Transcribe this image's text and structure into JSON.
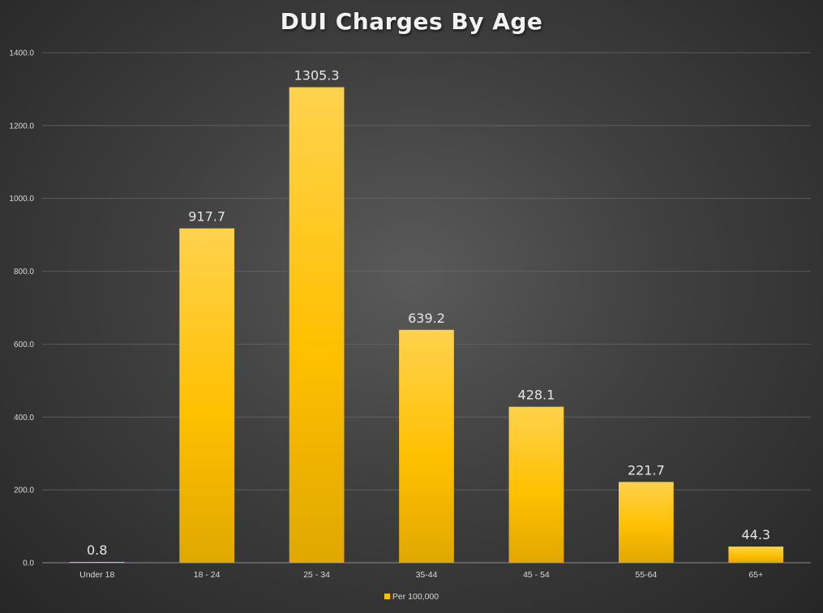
{
  "chart_data": {
    "type": "bar",
    "title": "DUI Charges By Age",
    "categories": [
      "Under 18",
      "18 - 24",
      "25 - 34",
      "35-44",
      "45 - 54",
      "55-64",
      "65+"
    ],
    "series": [
      {
        "name": "Per 100,000",
        "values": [
          0.8,
          917.7,
          1305.3,
          639.2,
          428.1,
          221.7,
          44.3
        ],
        "labels": [
          "0.8",
          "917.7",
          "1305.3",
          "639.2",
          "428.1",
          "221.7",
          "44.3"
        ]
      }
    ],
    "ylim": [
      0,
      1400
    ],
    "yticks": [
      0,
      200,
      400,
      600,
      800,
      1000,
      1200,
      1400
    ],
    "ytick_labels": [
      "0.0",
      "200.0",
      "400.0",
      "600.0",
      "800.0",
      "1000.0",
      "1200.0",
      "1400.0"
    ],
    "xlabel": "",
    "ylabel": "",
    "grid": true,
    "legend_position": "bottom",
    "bar_color": "#ffc000",
    "bar_color_light": "#ffd24d",
    "bar_color_dark": "#e0a800"
  }
}
